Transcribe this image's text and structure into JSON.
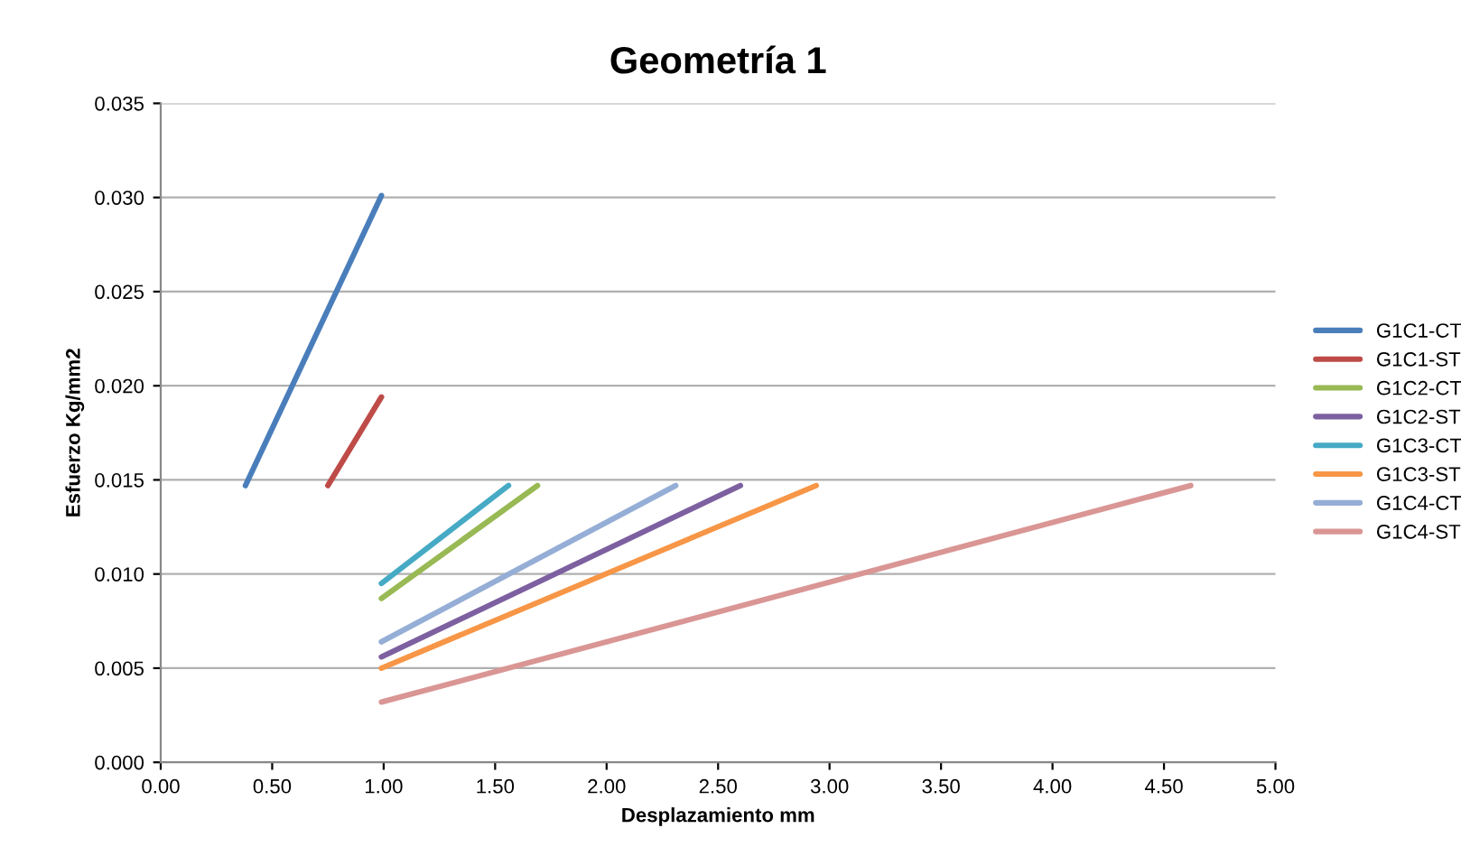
{
  "chart_data": {
    "type": "line",
    "title": "Geometría 1",
    "xlabel": "Desplazamiento mm",
    "ylabel": "Esfuerzo Kg/mm2",
    "xlim": [
      0,
      5
    ],
    "ylim": [
      0,
      0.035
    ],
    "xticks": [
      {
        "value": 0,
        "label": "0.00"
      },
      {
        "value": 0.5,
        "label": "0.50"
      },
      {
        "value": 1,
        "label": "1.00"
      },
      {
        "value": 1.5,
        "label": "1.50"
      },
      {
        "value": 2,
        "label": "2.00"
      },
      {
        "value": 2.5,
        "label": "2.50"
      },
      {
        "value": 3,
        "label": "3.00"
      },
      {
        "value": 3.5,
        "label": "3.50"
      },
      {
        "value": 4,
        "label": "4.00"
      },
      {
        "value": 4.5,
        "label": "4.50"
      },
      {
        "value": 5,
        "label": "5.00"
      }
    ],
    "yticks": [
      {
        "value": 0,
        "label": "0.000"
      },
      {
        "value": 0.005,
        "label": "0.005"
      },
      {
        "value": 0.01,
        "label": "0.010"
      },
      {
        "value": 0.015,
        "label": "0.015"
      },
      {
        "value": 0.02,
        "label": "0.020"
      },
      {
        "value": 0.025,
        "label": "0.025"
      },
      {
        "value": 0.03,
        "label": "0.030"
      },
      {
        "value": 0.035,
        "label": "0.035"
      }
    ],
    "grid": "y",
    "legend": "right",
    "marker": "none",
    "line_style": "solid",
    "series": [
      {
        "name": "G1C1-CT",
        "color": "#4a7ebb",
        "x": [
          0.38,
          0.99
        ],
        "values": [
          0.0147,
          0.0301
        ]
      },
      {
        "name": "G1C1-ST",
        "color": "#be4b48",
        "x": [
          0.75,
          0.99
        ],
        "values": [
          0.0147,
          0.0194
        ]
      },
      {
        "name": "G1C2-CT",
        "color": "#98b954",
        "x": [
          0.99,
          1.69
        ],
        "values": [
          0.0087,
          0.0147
        ]
      },
      {
        "name": "G1C2-ST",
        "color": "#7d60a0",
        "x": [
          0.99,
          2.6
        ],
        "values": [
          0.0056,
          0.0147
        ]
      },
      {
        "name": "G1C3-CT",
        "color": "#46aac5",
        "x": [
          0.99,
          1.56
        ],
        "values": [
          0.0095,
          0.0147
        ]
      },
      {
        "name": "G1C3-ST",
        "color": "#f79646",
        "x": [
          0.99,
          2.94
        ],
        "values": [
          0.005,
          0.0147
        ]
      },
      {
        "name": "G1C4-CT",
        "color": "#95aed6",
        "x": [
          0.99,
          2.31
        ],
        "values": [
          0.0064,
          0.0147
        ]
      },
      {
        "name": "G1C4-ST",
        "color": "#d99694",
        "x": [
          0.99,
          4.62
        ],
        "values": [
          0.0032,
          0.0147
        ]
      }
    ]
  }
}
